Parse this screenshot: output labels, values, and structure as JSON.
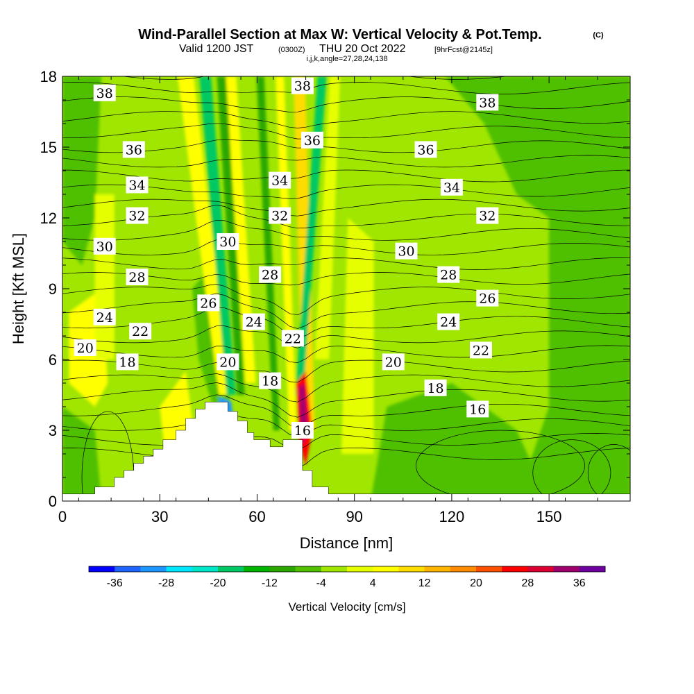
{
  "title": {
    "main": "Wind-Parallel Section at Max W: Vertical Velocity & Pot.Temp.",
    "copyright": "(C)",
    "valid_prefix": "Valid 1200 JST",
    "valid_z": "(0300Z)",
    "valid_date": "THU 20 Oct 2022",
    "valid_fcst": "[9hrFcst@2145z]",
    "indices": "i,j,k,angle=27,28,24,138"
  },
  "chart_data": {
    "type": "heatmap",
    "xlabel": "Distance [nm]",
    "ylabel": "Height [Kft MSL]",
    "xlim": [
      0,
      175
    ],
    "ylim": [
      0,
      18
    ],
    "x_ticks": [
      0,
      30,
      60,
      90,
      120,
      150
    ],
    "y_ticks": [
      0,
      3,
      6,
      9,
      12,
      15,
      18
    ],
    "colorbar": {
      "title": "Vertical Velocity [cm/s]",
      "tick_labels": [
        "-36",
        "-28",
        "-20",
        "-12",
        "-4",
        "4",
        "12",
        "20",
        "28",
        "36"
      ],
      "levels": [
        -40,
        -36,
        -32,
        -28,
        -24,
        -20,
        -16,
        -12,
        -8,
        -4,
        0,
        4,
        8,
        12,
        16,
        20,
        24,
        28,
        32,
        36,
        40
      ],
      "colors": [
        "#0000ff",
        "#1e64ff",
        "#1e96ff",
        "#00e6ff",
        "#00e6c8",
        "#00c864",
        "#00b400",
        "#2aa800",
        "#50c000",
        "#a0e600",
        "#e6ff00",
        "#ffff00",
        "#ffdc00",
        "#ffb400",
        "#ff8c00",
        "#ff5000",
        "#ff0000",
        "#dc0032",
        "#a0006e",
        "#6e00a0"
      ]
    },
    "contour_variable": "Potential Temperature",
    "contour_labels": [
      {
        "value": "38",
        "x": 13,
        "y": 17.3
      },
      {
        "value": "38",
        "x": 74,
        "y": 17.6
      },
      {
        "value": "38",
        "x": 131,
        "y": 16.9
      },
      {
        "value": "36",
        "x": 22,
        "y": 14.9
      },
      {
        "value": "36",
        "x": 77,
        "y": 15.3
      },
      {
        "value": "36",
        "x": 112,
        "y": 14.9
      },
      {
        "value": "34",
        "x": 23,
        "y": 13.4
      },
      {
        "value": "34",
        "x": 67,
        "y": 13.6
      },
      {
        "value": "34",
        "x": 120,
        "y": 13.3
      },
      {
        "value": "32",
        "x": 23,
        "y": 12.1
      },
      {
        "value": "32",
        "x": 67,
        "y": 12.1
      },
      {
        "value": "32",
        "x": 131,
        "y": 12.1
      },
      {
        "value": "30",
        "x": 13,
        "y": 10.8
      },
      {
        "value": "30",
        "x": 51,
        "y": 11.0
      },
      {
        "value": "30",
        "x": 106,
        "y": 10.6
      },
      {
        "value": "28",
        "x": 23,
        "y": 9.5
      },
      {
        "value": "28",
        "x": 64,
        "y": 9.6
      },
      {
        "value": "28",
        "x": 119,
        "y": 9.6
      },
      {
        "value": "26",
        "x": 45,
        "y": 8.4
      },
      {
        "value": "26",
        "x": 131,
        "y": 8.6
      },
      {
        "value": "24",
        "x": 13,
        "y": 7.8
      },
      {
        "value": "24",
        "x": 59,
        "y": 7.6
      },
      {
        "value": "24",
        "x": 119,
        "y": 7.6
      },
      {
        "value": "22",
        "x": 24,
        "y": 7.2
      },
      {
        "value": "22",
        "x": 71,
        "y": 6.9
      },
      {
        "value": "22",
        "x": 129,
        "y": 6.4
      },
      {
        "value": "20",
        "x": 7,
        "y": 6.5
      },
      {
        "value": "20",
        "x": 51,
        "y": 5.9
      },
      {
        "value": "20",
        "x": 102,
        "y": 5.9
      },
      {
        "value": "18",
        "x": 20,
        "y": 5.9
      },
      {
        "value": "18",
        "x": 64,
        "y": 5.1
      },
      {
        "value": "18",
        "x": 115,
        "y": 4.8
      },
      {
        "value": "16",
        "x": 74,
        "y": 3.0
      },
      {
        "value": "16",
        "x": 128,
        "y": 3.9
      }
    ],
    "terrain_profile": [
      [
        0,
        0.3
      ],
      [
        10,
        0.3
      ],
      [
        10,
        0.6
      ],
      [
        16,
        0.6
      ],
      [
        16,
        1.0
      ],
      [
        19,
        1.0
      ],
      [
        19,
        1.3
      ],
      [
        22,
        1.3
      ],
      [
        22,
        1.6
      ],
      [
        25,
        1.6
      ],
      [
        25,
        1.9
      ],
      [
        28,
        1.9
      ],
      [
        28,
        2.2
      ],
      [
        31,
        2.2
      ],
      [
        31,
        2.6
      ],
      [
        35,
        2.6
      ],
      [
        35,
        3.0
      ],
      [
        38,
        3.0
      ],
      [
        38,
        3.5
      ],
      [
        41,
        3.5
      ],
      [
        41,
        3.9
      ],
      [
        44,
        3.9
      ],
      [
        44,
        4.2
      ],
      [
        51,
        4.2
      ],
      [
        51,
        3.8
      ],
      [
        54,
        3.8
      ],
      [
        54,
        3.4
      ],
      [
        57,
        3.4
      ],
      [
        57,
        2.9
      ],
      [
        59,
        2.9
      ],
      [
        59,
        2.6
      ],
      [
        64,
        2.6
      ],
      [
        64,
        2.3
      ],
      [
        68,
        2.3
      ],
      [
        68,
        2.6
      ],
      [
        74,
        2.6
      ],
      [
        74,
        1.3
      ],
      [
        77,
        1.3
      ],
      [
        77,
        0.6
      ],
      [
        82,
        0.6
      ],
      [
        82,
        0.3
      ],
      [
        175,
        0.3
      ]
    ]
  }
}
